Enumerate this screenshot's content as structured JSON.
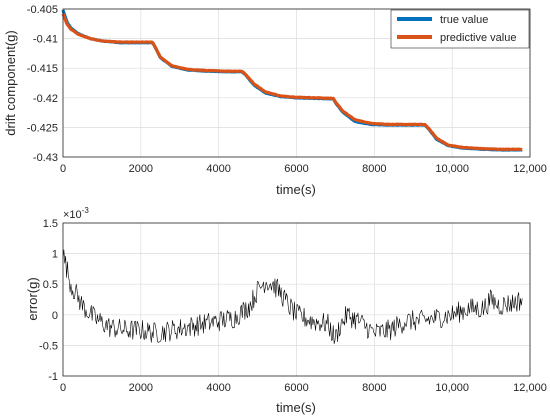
{
  "chart_data": [
    {
      "type": "line",
      "title": "",
      "xlabel": "time(s)",
      "ylabel": "drift component(g)",
      "xlim": [
        0,
        12000
      ],
      "ylim": [
        -0.43,
        -0.405
      ],
      "xticks": [
        0,
        2000,
        4000,
        6000,
        8000,
        10000,
        12000
      ],
      "xtick_labels": [
        "0",
        "2000",
        "4000",
        "6000",
        "8000",
        "10,000",
        "12,000"
      ],
      "yticks": [
        -0.405,
        -0.41,
        -0.415,
        -0.42,
        -0.425,
        -0.43
      ],
      "ytick_labels": [
        "-0.405",
        "-0.41",
        "-0.415",
        "-0.42",
        "-0.425",
        "-0.43"
      ],
      "grid": true,
      "legend_position": "top-right",
      "series": [
        {
          "name": "true value",
          "color": "#0072BD",
          "x": [
            0,
            100,
            200,
            400,
            700,
            1000,
            1500,
            2000,
            2300,
            2350,
            2500,
            2800,
            3200,
            3700,
            4200,
            4600,
            4700,
            4900,
            5200,
            5600,
            6000,
            6500,
            6950,
            7000,
            7200,
            7500,
            7900,
            8400,
            8900,
            9300,
            9400,
            9600,
            9900,
            10300,
            10800,
            11300,
            11800
          ],
          "y": [
            -0.4052,
            -0.4072,
            -0.4082,
            -0.4092,
            -0.41,
            -0.4104,
            -0.4107,
            -0.4107,
            -0.4107,
            -0.4112,
            -0.4132,
            -0.4147,
            -0.4153,
            -0.4155,
            -0.4156,
            -0.4156,
            -0.4162,
            -0.4178,
            -0.4192,
            -0.4198,
            -0.42,
            -0.4201,
            -0.4202,
            -0.4208,
            -0.4225,
            -0.424,
            -0.4245,
            -0.4246,
            -0.4246,
            -0.4246,
            -0.4253,
            -0.427,
            -0.4281,
            -0.4285,
            -0.4287,
            -0.4288,
            -0.4288
          ]
        },
        {
          "name": "predictive value",
          "color": "#D95319",
          "x": [
            0,
            100,
            200,
            400,
            700,
            1000,
            1500,
            2000,
            2300,
            2350,
            2500,
            2800,
            3200,
            3700,
            4200,
            4600,
            4700,
            4900,
            5200,
            5600,
            6000,
            6500,
            6950,
            7000,
            7200,
            7500,
            7900,
            8400,
            8900,
            9300,
            9400,
            9600,
            9900,
            10300,
            10800,
            11300,
            11800
          ],
          "y": [
            -0.4058,
            -0.4075,
            -0.4084,
            -0.4093,
            -0.41,
            -0.4104,
            -0.4106,
            -0.4106,
            -0.4106,
            -0.4112,
            -0.4131,
            -0.4146,
            -0.4152,
            -0.4154,
            -0.4155,
            -0.4155,
            -0.4161,
            -0.4176,
            -0.419,
            -0.4197,
            -0.4199,
            -0.42,
            -0.4201,
            -0.4207,
            -0.4223,
            -0.4237,
            -0.4243,
            -0.4245,
            -0.4245,
            -0.4245,
            -0.4252,
            -0.4268,
            -0.428,
            -0.4284,
            -0.4286,
            -0.4287,
            -0.4287
          ]
        }
      ]
    },
    {
      "type": "line",
      "title": "",
      "xlabel": "time(s)",
      "ylabel": "error(g)",
      "y_exponent_label": "×10",
      "y_exponent_power": "-3",
      "xlim": [
        0,
        12000
      ],
      "ylim": [
        -1,
        1.5
      ],
      "xticks": [
        0,
        2000,
        4000,
        6000,
        8000,
        10000,
        12000
      ],
      "xtick_labels": [
        "0",
        "2000",
        "4000",
        "6000",
        "8000",
        "10,000",
        "12,000"
      ],
      "yticks": [
        1.5,
        1,
        0.5,
        0,
        -0.5,
        -1
      ],
      "ytick_labels": [
        "1.5",
        "1",
        "0.5",
        "0",
        "-0.5",
        "-1"
      ],
      "grid": true,
      "series": [
        {
          "name": "",
          "color": "#000000",
          "x": [
            0,
            200,
            500,
            800,
            1200,
            1600,
            2000,
            2400,
            2800,
            3200,
            3600,
            4000,
            4400,
            4800,
            5000,
            5200,
            5400,
            5600,
            5800,
            6000,
            6400,
            6800,
            7000,
            7100,
            7300,
            7600,
            8000,
            8400,
            8800,
            9200,
            9600,
            10000,
            10400,
            10800,
            11000,
            11200,
            11600,
            11800
          ],
          "y": [
            1.0,
            0.5,
            0.15,
            -0.05,
            -0.2,
            -0.25,
            -0.25,
            -0.3,
            -0.25,
            -0.2,
            -0.15,
            -0.1,
            -0.05,
            0.15,
            0.4,
            0.55,
            0.5,
            0.35,
            0.15,
            0.0,
            -0.1,
            -0.15,
            -0.4,
            -0.2,
            0.0,
            -0.1,
            -0.3,
            -0.25,
            -0.1,
            -0.1,
            -0.05,
            0.0,
            0.1,
            0.1,
            0.25,
            0.15,
            0.2,
            0.25
          ]
        }
      ]
    }
  ]
}
